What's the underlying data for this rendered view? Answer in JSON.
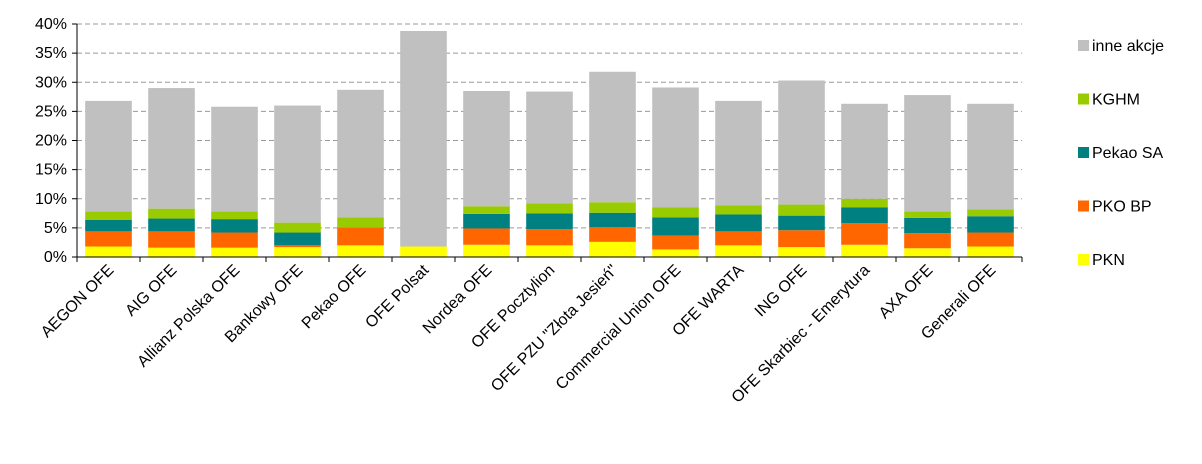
{
  "chart_data": {
    "type": "bar",
    "stacked": true,
    "categories": [
      "AEGON OFE",
      "AIG OFE",
      "Allianz Polska OFE",
      "Bankowy OFE",
      "Pekao OFE",
      "OFE Polsat",
      "Nordea OFE",
      "OFE Pocztylion",
      "OFE PZU \"Złota Jesień\"",
      "Commercial Union OFE",
      "OFE WARTA",
      "ING OFE",
      "OFE Skarbiec - Emerytura",
      "AXA OFE",
      "Generali OFE"
    ],
    "series": [
      {
        "name": "PKN",
        "color": "#ffff00",
        "values": [
          1.8,
          1.6,
          1.6,
          1.7,
          2.0,
          1.8,
          2.1,
          2.0,
          2.6,
          1.3,
          2.0,
          1.7,
          2.1,
          1.5,
          1.8
        ]
      },
      {
        "name": "PKO BP",
        "color": "#ff6600",
        "values": [
          2.6,
          2.8,
          2.6,
          0.3,
          3.1,
          0.0,
          2.8,
          2.8,
          2.5,
          2.4,
          2.4,
          2.9,
          3.7,
          2.6,
          2.4
        ]
      },
      {
        "name": "Pekao SA",
        "color": "#008080",
        "values": [
          2.0,
          2.2,
          2.3,
          2.2,
          0.0,
          0.0,
          2.5,
          2.7,
          2.5,
          3.1,
          2.9,
          2.5,
          2.7,
          2.6,
          2.8
        ]
      },
      {
        "name": "KGHM",
        "color": "#99cc00",
        "values": [
          1.4,
          1.7,
          1.3,
          1.7,
          1.7,
          0.0,
          1.3,
          1.7,
          1.8,
          1.7,
          1.6,
          1.9,
          1.5,
          1.1,
          1.2
        ]
      },
      {
        "name": "inne akcje",
        "color": "#c0c0c0",
        "values": [
          19.0,
          20.7,
          18.0,
          20.1,
          21.9,
          37.0,
          19.8,
          19.2,
          22.4,
          20.6,
          17.9,
          21.3,
          16.3,
          20.0,
          18.1
        ]
      }
    ],
    "legend_order": [
      "inne akcje",
      "KGHM",
      "Pekao SA",
      "PKO BP",
      "PKN"
    ],
    "yticks": [
      "0%",
      "5%",
      "10%",
      "15%",
      "20%",
      "25%",
      "30%",
      "35%",
      "40%"
    ],
    "ylim": [
      0,
      40
    ],
    "ytick_step": 5,
    "grid": "horizontal-dashed",
    "legend_position": "right",
    "title": "",
    "xlabel": "",
    "ylabel": ""
  }
}
